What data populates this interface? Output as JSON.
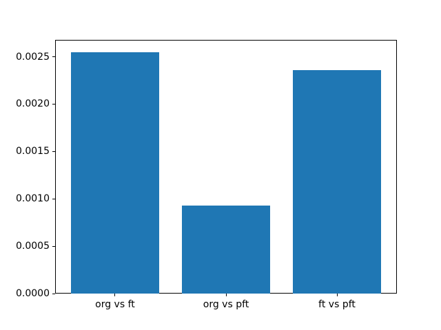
{
  "chart_data": {
    "type": "bar",
    "categories": [
      "org vs ft",
      "org vs pft",
      "ft vs pft"
    ],
    "values": [
      0.002545,
      0.000929,
      0.002356
    ],
    "title": "",
    "xlabel": "",
    "ylabel": "",
    "ylim": [
      0,
      0.002678
    ],
    "xlim": [
      -0.54,
      2.54
    ],
    "bar_width": 0.8,
    "ytick_values": [
      0.0,
      0.0005,
      0.001,
      0.0015,
      0.002,
      0.0025
    ],
    "ytick_labels": [
      "0.0000",
      "0.0005",
      "0.0010",
      "0.0015",
      "0.0020",
      "0.0025"
    ],
    "bar_color": "#1f77b4",
    "spine_color": "#000000",
    "background_color": "#ffffff",
    "grid": false,
    "legend": "none"
  }
}
